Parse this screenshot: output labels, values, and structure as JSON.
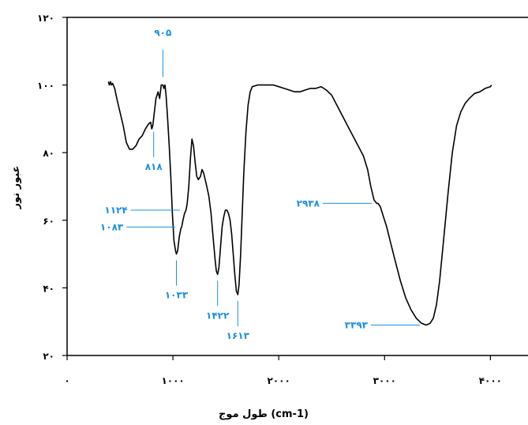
{
  "chart_data": {
    "type": "line",
    "xlabel": "طول موج (cm-1)",
    "ylabel": "عبور نور",
    "xlim": [
      0,
      4400
    ],
    "ylim": [
      20,
      120
    ],
    "grid": false,
    "x_ticks": [
      {
        "value": 0,
        "label": "۰"
      },
      {
        "value": 1000,
        "label": "۱۰۰۰"
      },
      {
        "value": 2000,
        "label": "۲۰۰۰"
      },
      {
        "value": 3000,
        "label": "۳۰۰۰"
      },
      {
        "value": 4000,
        "label": "۴۰۰۰"
      }
    ],
    "y_ticks": [
      {
        "value": 20,
        "label": "۲۰"
      },
      {
        "value": 40,
        "label": "۴۰"
      },
      {
        "value": 60,
        "label": "۶۰"
      },
      {
        "value": 80,
        "label": "۸۰"
      },
      {
        "value": 100,
        "label": "۱۰۰"
      },
      {
        "value": 120,
        "label": "۱۲۰"
      }
    ],
    "series": [
      {
        "color": "#000000",
        "points": [
          [
            390,
            101
          ],
          [
            400,
            100
          ],
          [
            410,
            101
          ],
          [
            420,
            100
          ],
          [
            430,
            100.5
          ],
          [
            450,
            99
          ],
          [
            470,
            96
          ],
          [
            500,
            92
          ],
          [
            530,
            88
          ],
          [
            560,
            83
          ],
          [
            590,
            81
          ],
          [
            620,
            81
          ],
          [
            650,
            82
          ],
          [
            680,
            84
          ],
          [
            710,
            85
          ],
          [
            740,
            87
          ],
          [
            770,
            88.5
          ],
          [
            790,
            89
          ],
          [
            800,
            87
          ],
          [
            810,
            88
          ],
          [
            825,
            92
          ],
          [
            840,
            96
          ],
          [
            860,
            98
          ],
          [
            875,
            96
          ],
          [
            890,
            100
          ],
          [
            905,
            100
          ],
          [
            915,
            99
          ],
          [
            925,
            100
          ],
          [
            935,
            97
          ],
          [
            950,
            90
          ],
          [
            965,
            82
          ],
          [
            980,
            73
          ],
          [
            995,
            62
          ],
          [
            1010,
            54
          ],
          [
            1025,
            51
          ],
          [
            1033,
            50
          ],
          [
            1045,
            51
          ],
          [
            1060,
            55
          ],
          [
            1075,
            57.5
          ],
          [
            1083,
            58
          ],
          [
            1095,
            60
          ],
          [
            1110,
            62
          ],
          [
            1124,
            63
          ],
          [
            1135,
            65
          ],
          [
            1150,
            70
          ],
          [
            1165,
            78
          ],
          [
            1180,
            84
          ],
          [
            1195,
            82
          ],
          [
            1210,
            77
          ],
          [
            1225,
            73
          ],
          [
            1240,
            72
          ],
          [
            1260,
            73
          ],
          [
            1275,
            75
          ],
          [
            1290,
            74
          ],
          [
            1305,
            72
          ],
          [
            1320,
            70
          ],
          [
            1340,
            67
          ],
          [
            1360,
            62
          ],
          [
            1380,
            55
          ],
          [
            1400,
            48
          ],
          [
            1410,
            45
          ],
          [
            1422,
            44
          ],
          [
            1435,
            46
          ],
          [
            1450,
            52
          ],
          [
            1465,
            58
          ],
          [
            1480,
            61
          ],
          [
            1495,
            63
          ],
          [
            1510,
            63
          ],
          [
            1525,
            62
          ],
          [
            1540,
            60
          ],
          [
            1555,
            56
          ],
          [
            1570,
            50
          ],
          [
            1585,
            44
          ],
          [
            1600,
            39
          ],
          [
            1613,
            38
          ],
          [
            1625,
            41
          ],
          [
            1640,
            50
          ],
          [
            1655,
            62
          ],
          [
            1670,
            74
          ],
          [
            1690,
            86
          ],
          [
            1710,
            94
          ],
          [
            1730,
            98
          ],
          [
            1750,
            99.5
          ],
          [
            1800,
            100
          ],
          [
            1900,
            100
          ],
          [
            1950,
            100
          ],
          [
            2000,
            99.5
          ],
          [
            2050,
            99
          ],
          [
            2100,
            98.5
          ],
          [
            2150,
            98
          ],
          [
            2200,
            98
          ],
          [
            2250,
            98.5
          ],
          [
            2300,
            99
          ],
          [
            2350,
            99
          ],
          [
            2400,
            99.5
          ],
          [
            2450,
            98.5
          ],
          [
            2500,
            97
          ],
          [
            2550,
            94
          ],
          [
            2600,
            91
          ],
          [
            2650,
            88
          ],
          [
            2700,
            85
          ],
          [
            2750,
            82
          ],
          [
            2800,
            79
          ],
          [
            2840,
            75
          ],
          [
            2870,
            70
          ],
          [
            2900,
            66
          ],
          [
            2925,
            65
          ],
          [
            2938,
            65
          ],
          [
            2960,
            64
          ],
          [
            2990,
            61
          ],
          [
            3020,
            58
          ],
          [
            3060,
            53
          ],
          [
            3100,
            48
          ],
          [
            3150,
            42
          ],
          [
            3200,
            37
          ],
          [
            3250,
            33.5
          ],
          [
            3300,
            31
          ],
          [
            3350,
            29.5
          ],
          [
            3393,
            29
          ],
          [
            3430,
            29.5
          ],
          [
            3460,
            31
          ],
          [
            3490,
            35
          ],
          [
            3520,
            42
          ],
          [
            3560,
            55
          ],
          [
            3600,
            68
          ],
          [
            3640,
            80
          ],
          [
            3680,
            88
          ],
          [
            3720,
            92
          ],
          [
            3760,
            94.5
          ],
          [
            3800,
            96
          ],
          [
            3850,
            97.5
          ],
          [
            3900,
            98
          ],
          [
            3950,
            99
          ],
          [
            4000,
            99.5
          ],
          [
            4010,
            100
          ]
        ]
      }
    ],
    "annotations": [
      {
        "label": "۹۰۵",
        "x": 905,
        "y": 100,
        "side": "top"
      },
      {
        "label": "۸۱۸",
        "x": 818,
        "y": 88,
        "side": "below"
      },
      {
        "label": "۱۱۲۴",
        "x": 1124,
        "y": 63,
        "side": "left"
      },
      {
        "label": "۱۰۸۳",
        "x": 1083,
        "y": 58,
        "side": "left"
      },
      {
        "label": "۱۰۳۳",
        "x": 1033,
        "y": 50,
        "side": "below"
      },
      {
        "label": "۱۴۲۲",
        "x": 1422,
        "y": 44,
        "side": "below"
      },
      {
        "label": "۱۶۱۳",
        "x": 1613,
        "y": 38,
        "side": "below"
      },
      {
        "label": "۲۹۳۸",
        "x": 2938,
        "y": 65,
        "side": "left"
      },
      {
        "label": "۳۳۹۳",
        "x": 3393,
        "y": 29,
        "side": "left"
      }
    ]
  }
}
